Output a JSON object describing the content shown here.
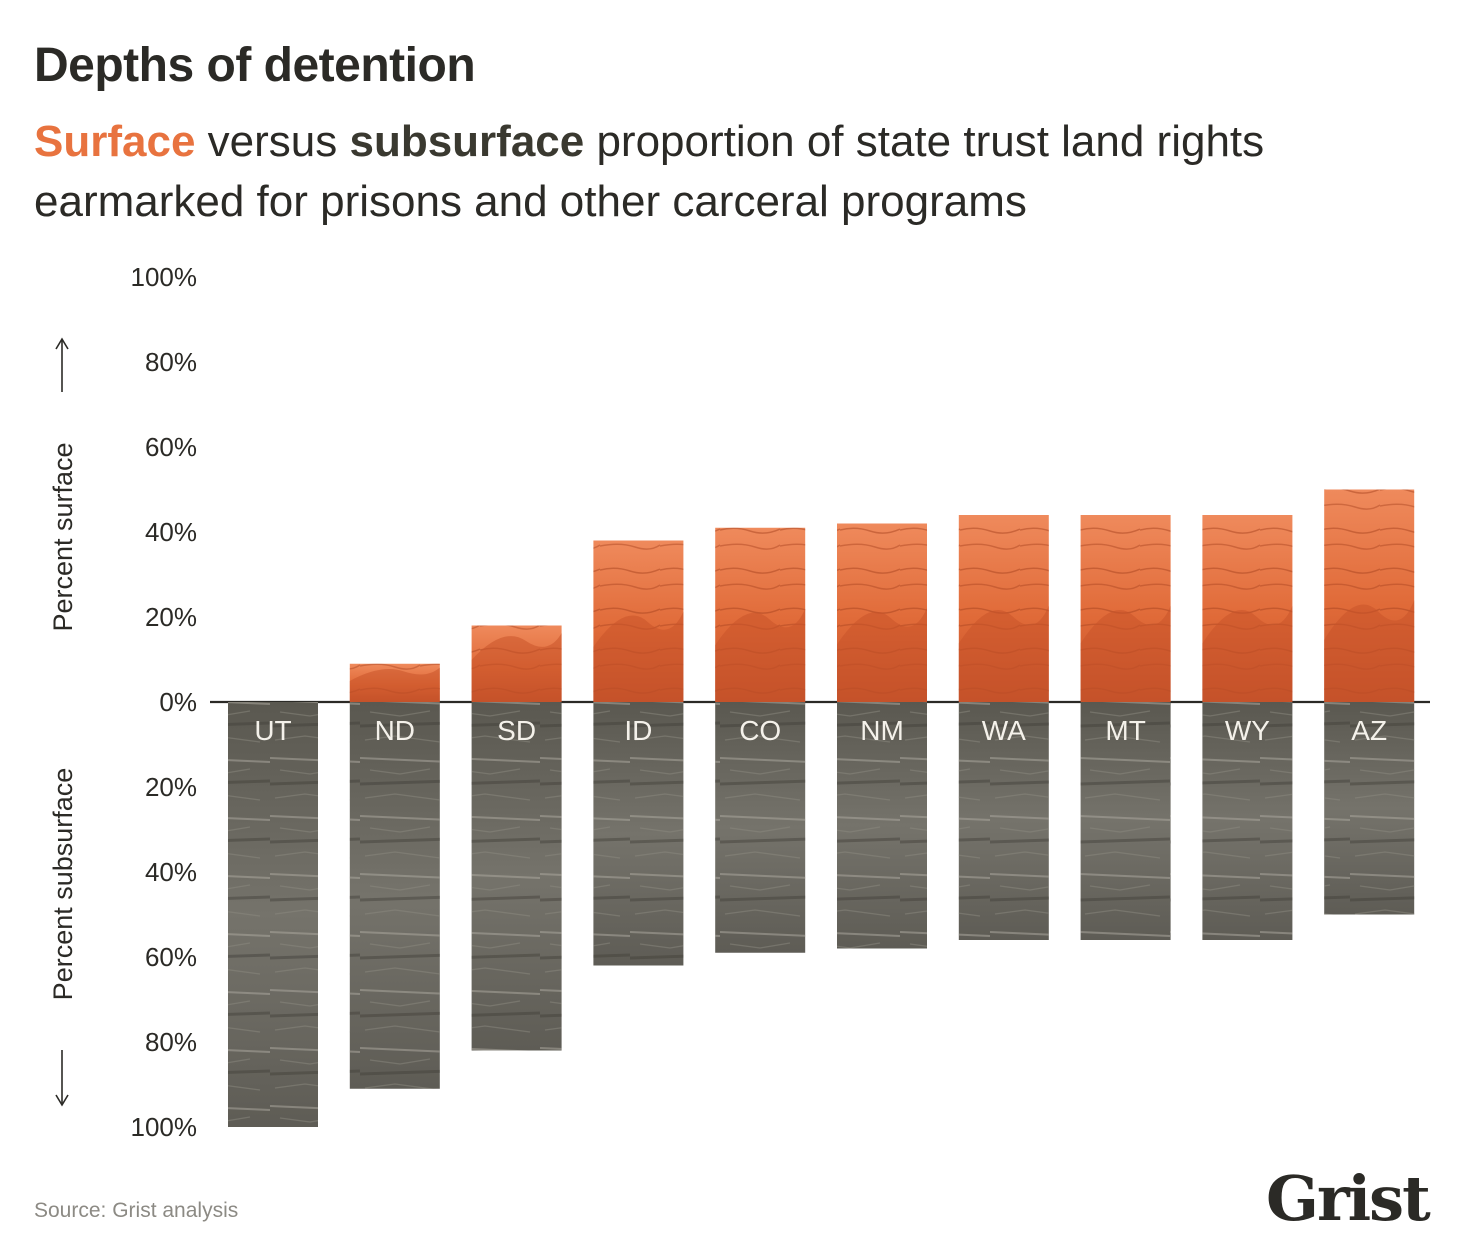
{
  "title": "Depths of detention",
  "subtitle": {
    "surface_word": "Surface",
    "versus": " versus ",
    "subsurface_word": "subsurface",
    "rest": " proportion of state trust land rights earmarked for prisons and other carceral programs"
  },
  "source": "Source: Grist analysis",
  "logo": "Grist",
  "colors": {
    "surface": "#e8733f",
    "surface_dark": "#c9542a",
    "subsurface": "#6d6b63",
    "subsurface_dark": "#4e4c45",
    "axis": "#2b2a26",
    "text": "#2b2a26"
  },
  "chart_data": {
    "type": "bar",
    "categories": [
      "UT",
      "ND",
      "SD",
      "ID",
      "CO",
      "NM",
      "WA",
      "MT",
      "WY",
      "AZ"
    ],
    "series": [
      {
        "name": "Surface",
        "values": [
          0,
          9,
          18,
          38,
          41,
          42,
          44,
          44,
          44,
          50
        ]
      },
      {
        "name": "Subsurface",
        "values": [
          100,
          91,
          82,
          62,
          59,
          58,
          56,
          56,
          56,
          50
        ]
      }
    ],
    "ylabel_up": "Percent surface",
    "ylabel_down": "Percent subsurface",
    "up_ticks": [
      "100%",
      "80%",
      "60%",
      "40%",
      "20%"
    ],
    "zero_tick": "0%",
    "down_ticks": [
      "20%",
      "40%",
      "60%",
      "80%",
      "100%"
    ],
    "ylim": [
      -100,
      100
    ]
  }
}
